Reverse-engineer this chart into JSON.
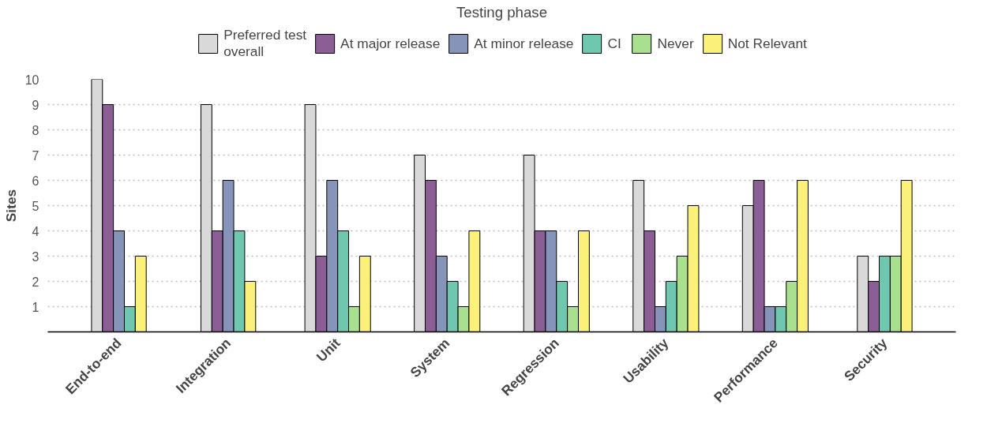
{
  "chart_data": {
    "type": "bar",
    "title": "Testing phase",
    "ylabel": "Sites",
    "categories": [
      "End-to-end",
      "Integration",
      "Unit",
      "System",
      "Regression",
      "Usability",
      "Performance",
      "Security"
    ],
    "series": [
      {
        "name": "Preferred test\noverall",
        "color": "#d9d9d9",
        "values": [
          10,
          9,
          9,
          7,
          7,
          6,
          5,
          3
        ]
      },
      {
        "name": "At major release",
        "color": "#8b5e96",
        "values": [
          9,
          4,
          3,
          6,
          4,
          4,
          6,
          2
        ]
      },
      {
        "name": "At minor release",
        "color": "#8594b8",
        "values": [
          4,
          6,
          6,
          3,
          4,
          1,
          1,
          null
        ]
      },
      {
        "name": "CI",
        "color": "#6fc7b0",
        "values": [
          1,
          4,
          4,
          2,
          2,
          2,
          1,
          3
        ]
      },
      {
        "name": "Never",
        "color": "#a8e08f",
        "values": [
          null,
          null,
          1,
          1,
          1,
          3,
          2,
          3
        ]
      },
      {
        "name": "Not Relevant",
        "color": "#fbf07a",
        "values": [
          3,
          2,
          3,
          4,
          4,
          5,
          6,
          6
        ]
      }
    ],
    "ylim": [
      0,
      10
    ],
    "yticks": [
      1,
      2,
      3,
      4,
      5,
      6,
      7,
      8,
      9,
      10
    ],
    "grid": "y",
    "legend": "top"
  }
}
